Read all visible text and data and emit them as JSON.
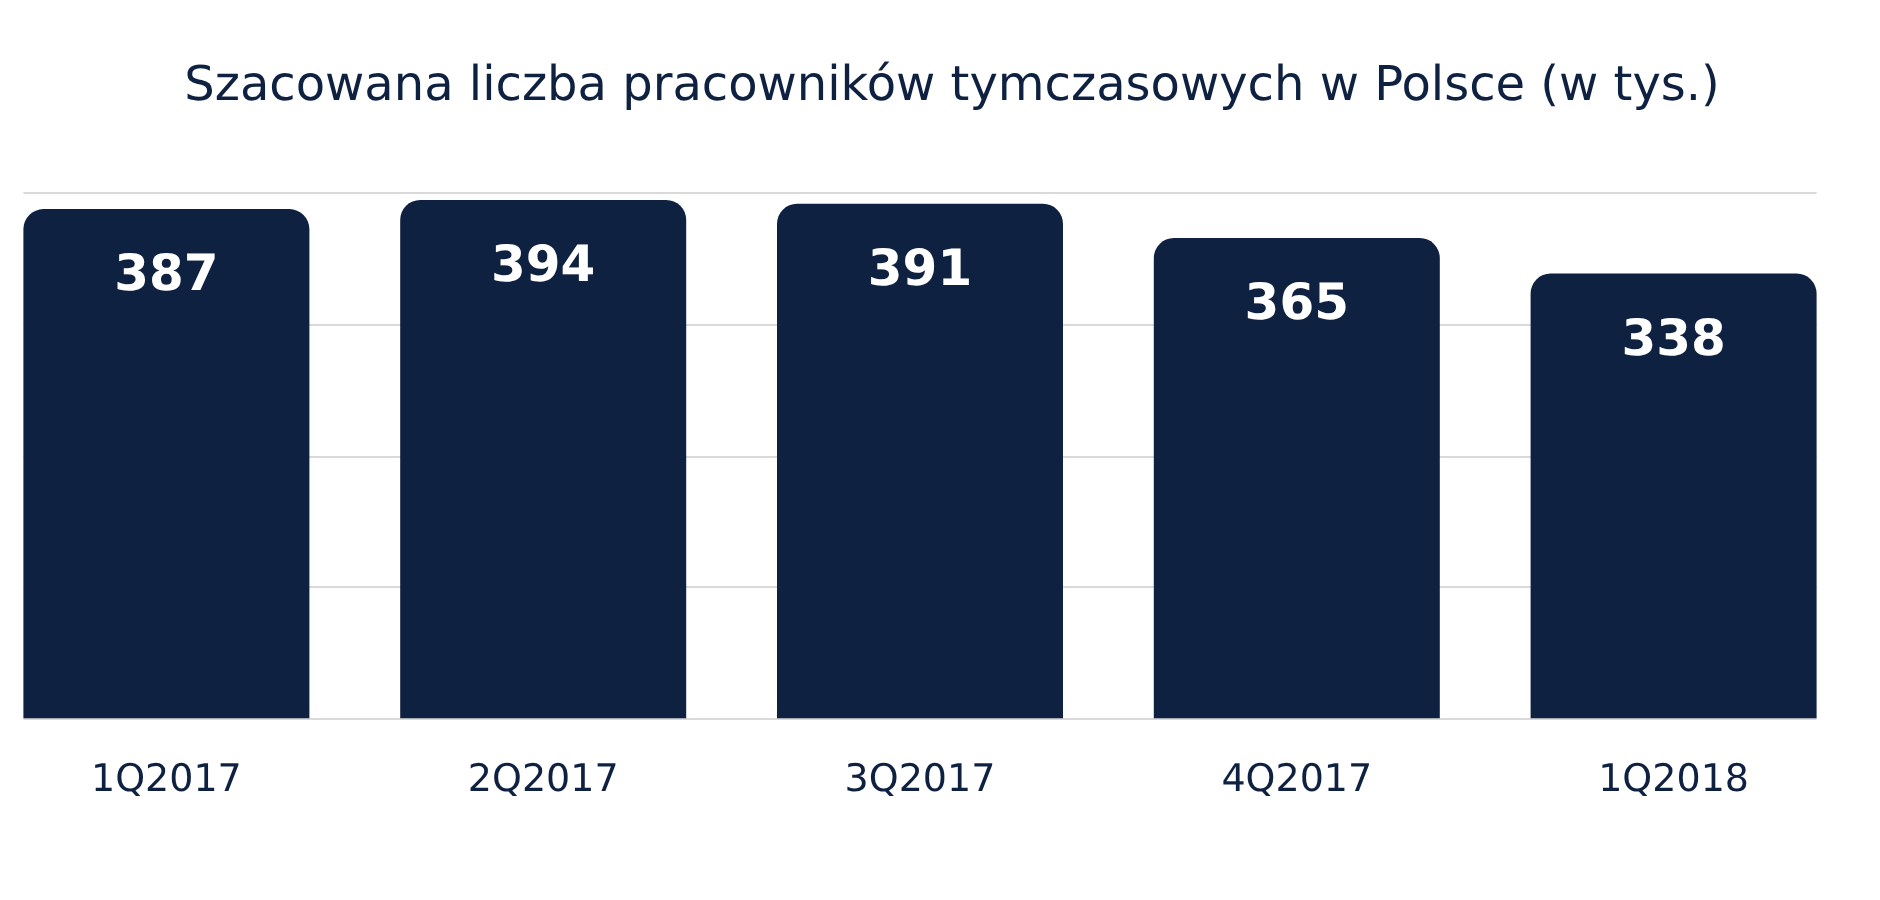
{
  "chart_data": {
    "type": "bar",
    "title": "Szacowana liczba pracowników tymczasowych w Polsce (w tys.)",
    "categories": [
      "1Q2017",
      "2Q2017",
      "3Q2017",
      "4Q2017",
      "1Q2018"
    ],
    "values": [
      387,
      394,
      391,
      365,
      338
    ],
    "color": "#0f2141",
    "ylim": [
      0,
      400
    ],
    "yticks": [
      {
        "value": 0,
        "label": null
      },
      {
        "value": 100,
        "label": null
      },
      {
        "value": 200,
        "label": null
      },
      {
        "value": 300,
        "label": null
      },
      {
        "value": 400,
        "label": null
      }
    ],
    "grid": "y",
    "tick_labels": "x",
    "data_labels": true
  }
}
